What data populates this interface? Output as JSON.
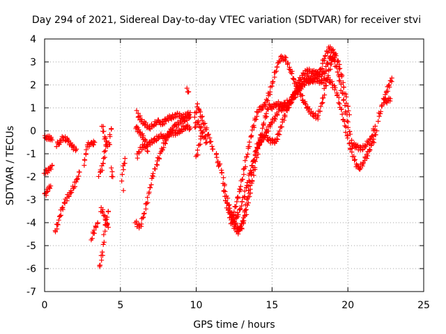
{
  "chart_data": {
    "type": "scatter",
    "title": "Day 294 of 2021, Sidereal Day-to-day VTEC variation (SDTVAR) for receiver stvi",
    "xlabel": "GPS time / hours",
    "ylabel": "SDTVAR / TECUs",
    "xlim": [
      0,
      25
    ],
    "ylim": [
      -7,
      4
    ],
    "xticks": [
      0,
      5,
      10,
      15,
      20,
      25
    ],
    "yticks": [
      -7,
      -6,
      -5,
      -4,
      -3,
      -2,
      -1,
      0,
      1,
      2,
      3,
      4
    ],
    "grid": true,
    "marker": "+",
    "series": [
      {
        "name": "SDTVAR",
        "color": "#ff0000",
        "tracks": [
          [
            [
              0.0,
              -0.3
            ],
            [
              0.3,
              -0.3
            ],
            [
              0.5,
              -0.4
            ]
          ],
          [
            [
              0.0,
              -1.8
            ],
            [
              0.3,
              -1.7
            ],
            [
              0.5,
              -1.5
            ]
          ],
          [
            [
              0.0,
              -2.8
            ],
            [
              0.2,
              -2.6
            ],
            [
              0.4,
              -2.4
            ]
          ],
          [
            [
              0.8,
              -0.6
            ],
            [
              1.0,
              -0.5
            ],
            [
              1.2,
              -0.3
            ],
            [
              1.5,
              -0.4
            ],
            [
              1.8,
              -0.7
            ],
            [
              2.1,
              -0.8
            ]
          ],
          [
            [
              0.7,
              -4.4
            ],
            [
              0.9,
              -4.0
            ],
            [
              1.1,
              -3.5
            ],
            [
              1.4,
              -3.0
            ],
            [
              1.8,
              -2.6
            ],
            [
              2.1,
              -2.2
            ],
            [
              2.3,
              -1.8
            ]
          ],
          [
            [
              2.6,
              -1.5
            ],
            [
              2.7,
              -1.1
            ],
            [
              2.8,
              -0.6
            ],
            [
              3.1,
              -0.6
            ],
            [
              3.3,
              -0.5
            ]
          ],
          [
            [
              3.1,
              -4.7
            ],
            [
              3.3,
              -4.3
            ],
            [
              3.5,
              -4.0
            ]
          ],
          [
            [
              3.6,
              -6.0
            ],
            [
              3.8,
              -5.4
            ],
            [
              3.9,
              -4.8
            ],
            [
              4.0,
              -4.2
            ],
            [
              4.1,
              -3.8
            ],
            [
              4.2,
              -3.5
            ]
          ],
          [
            [
              3.6,
              -1.9
            ],
            [
              3.8,
              -1.6
            ],
            [
              3.9,
              -1.2
            ],
            [
              4.0,
              -0.8
            ],
            [
              4.1,
              -0.6
            ],
            [
              4.3,
              -0.6
            ]
          ],
          [
            [
              3.7,
              -3.4
            ],
            [
              3.9,
              -3.6
            ],
            [
              4.0,
              -3.9
            ],
            [
              4.2,
              -4.2
            ]
          ],
          [
            [
              3.8,
              0.2
            ],
            [
              3.9,
              -0.1
            ],
            [
              4.1,
              -0.6
            ]
          ],
          [
            [
              4.3,
              -0.2
            ],
            [
              4.4,
              0.1
            ]
          ],
          [
            [
              4.4,
              -1.7
            ],
            [
              4.5,
              -2.0
            ]
          ],
          [
            [
              5.1,
              -2.1
            ],
            [
              5.2,
              -1.6
            ],
            [
              5.3,
              -1.2
            ]
          ],
          [
            [
              5.2,
              -2.6
            ]
          ],
          [
            [
              6.0,
              -4.0
            ],
            [
              6.3,
              -4.2
            ],
            [
              6.6,
              -3.5
            ],
            [
              6.9,
              -2.7
            ],
            [
              7.1,
              -2.0
            ],
            [
              7.4,
              -1.4
            ],
            [
              7.7,
              -0.9
            ],
            [
              8.0,
              -0.4
            ],
            [
              8.3,
              0.0
            ],
            [
              8.6,
              0.2
            ],
            [
              9.0,
              0.4
            ],
            [
              9.3,
              0.5
            ],
            [
              9.6,
              0.6
            ]
          ],
          [
            [
              6.0,
              0.2
            ],
            [
              6.2,
              0.0
            ],
            [
              6.5,
              -0.3
            ],
            [
              6.8,
              -0.6
            ],
            [
              7.0,
              -0.5
            ],
            [
              7.3,
              -0.4
            ],
            [
              7.6,
              -0.2
            ],
            [
              7.9,
              -0.3
            ],
            [
              8.3,
              -0.1
            ],
            [
              8.6,
              -0.1
            ],
            [
              9.0,
              0.0
            ],
            [
              9.3,
              0.2
            ],
            [
              9.6,
              0.1
            ]
          ],
          [
            [
              6.1,
              0.8
            ],
            [
              6.3,
              0.5
            ],
            [
              6.6,
              0.3
            ],
            [
              6.9,
              0.1
            ],
            [
              7.2,
              0.3
            ],
            [
              7.5,
              0.4
            ],
            [
              7.8,
              0.3
            ],
            [
              8.0,
              0.5
            ],
            [
              8.4,
              0.6
            ],
            [
              8.8,
              0.7
            ],
            [
              9.2,
              0.6
            ],
            [
              9.6,
              0.8
            ]
          ],
          [
            [
              6.1,
              -1.1
            ],
            [
              6.3,
              -0.8
            ],
            [
              6.6,
              -0.6
            ],
            [
              6.8,
              -0.9
            ]
          ],
          [
            [
              9.4,
              1.8
            ],
            [
              9.5,
              1.7
            ]
          ],
          [
            [
              9.9,
              0.6
            ],
            [
              10.1,
              1.1
            ],
            [
              10.3,
              0.7
            ],
            [
              10.5,
              0.3
            ],
            [
              10.7,
              0.0
            ],
            [
              10.9,
              -0.4
            ],
            [
              11.1,
              -0.8
            ]
          ],
          [
            [
              9.9,
              0.2
            ],
            [
              10.1,
              0.4
            ],
            [
              10.3,
              0.1
            ],
            [
              10.5,
              -0.2
            ],
            [
              10.7,
              -0.5
            ]
          ],
          [
            [
              10.0,
              -1.2
            ],
            [
              10.2,
              -0.6
            ],
            [
              10.4,
              -0.1
            ]
          ],
          [
            [
              11.3,
              -0.9
            ],
            [
              11.4,
              -1.4
            ],
            [
              11.5,
              -1.5
            ]
          ],
          [
            [
              11.6,
              -1.5
            ],
            [
              11.8,
              -2.2
            ],
            [
              12.0,
              -2.9
            ],
            [
              12.2,
              -3.4
            ],
            [
              12.4,
              -3.8
            ],
            [
              12.6,
              -4.1
            ],
            [
              12.8,
              -4.3
            ],
            [
              13.0,
              -4.2
            ],
            [
              13.2,
              -3.8
            ],
            [
              13.4,
              -3.2
            ],
            [
              13.6,
              -2.5
            ],
            [
              13.8,
              -1.8
            ],
            [
              14.0,
              -1.1
            ],
            [
              14.2,
              -0.4
            ],
            [
              14.4,
              0.2
            ],
            [
              14.6,
              0.7
            ],
            [
              14.8,
              1.1
            ],
            [
              15.0,
              1.0
            ],
            [
              15.3,
              1.2
            ],
            [
              15.6,
              1.1
            ],
            [
              15.9,
              1.2
            ],
            [
              16.2,
              1.3
            ],
            [
              16.5,
              1.6
            ],
            [
              16.8,
              2.0
            ],
            [
              17.1,
              2.2
            ],
            [
              17.4,
              2.3
            ],
            [
              17.7,
              2.2
            ],
            [
              18.0,
              2.2
            ],
            [
              18.3,
              2.1
            ],
            [
              18.6,
              2.3
            ],
            [
              18.9,
              2.1
            ],
            [
              19.2,
              1.8
            ],
            [
              19.5,
              1.1
            ],
            [
              19.8,
              0.2
            ],
            [
              20.1,
              -0.6
            ],
            [
              20.4,
              -1.2
            ],
            [
              20.7,
              -1.7
            ],
            [
              21.0,
              -1.4
            ],
            [
              21.3,
              -1.0
            ],
            [
              21.6,
              -0.6
            ],
            [
              21.9,
              0.0
            ]
          ],
          [
            [
              11.8,
              -2.6
            ],
            [
              12.0,
              -3.2
            ],
            [
              12.2,
              -3.7
            ],
            [
              12.4,
              -4.0
            ],
            [
              12.6,
              -4.3
            ],
            [
              12.8,
              -4.4
            ],
            [
              13.0,
              -4.1
            ],
            [
              13.2,
              -3.5
            ],
            [
              13.4,
              -2.8
            ],
            [
              13.6,
              -2.0
            ],
            [
              13.8,
              -1.3
            ],
            [
              14.0,
              -0.7
            ],
            [
              14.2,
              -0.4
            ],
            [
              14.5,
              -0.2
            ],
            [
              14.8,
              -0.4
            ],
            [
              15.1,
              -0.5
            ],
            [
              15.3,
              -0.4
            ],
            [
              15.5,
              0.0
            ],
            [
              15.8,
              0.6
            ],
            [
              16.1,
              1.1
            ],
            [
              16.4,
              1.4
            ],
            [
              16.7,
              1.7
            ],
            [
              17.0,
              2.0
            ],
            [
              17.3,
              2.1
            ],
            [
              17.6,
              2.2
            ],
            [
              17.9,
              2.4
            ],
            [
              18.2,
              2.4
            ],
            [
              18.5,
              2.6
            ],
            [
              18.8,
              3.2
            ],
            [
              19.1,
              3.1
            ],
            [
              19.4,
              2.4
            ],
            [
              19.7,
              1.4
            ],
            [
              20.0,
              0.3
            ],
            [
              20.3,
              -0.6
            ],
            [
              20.6,
              -0.7
            ],
            [
              20.9,
              -0.8
            ],
            [
              21.2,
              -0.6
            ],
            [
              21.5,
              -0.4
            ],
            [
              21.8,
              0.2
            ]
          ],
          [
            [
              12.3,
              -4.0
            ],
            [
              12.5,
              -3.5
            ],
            [
              12.7,
              -3.0
            ],
            [
              12.9,
              -2.5
            ],
            [
              13.1,
              -1.9
            ],
            [
              13.3,
              -1.2
            ],
            [
              13.5,
              -0.6
            ],
            [
              13.7,
              0.0
            ],
            [
              13.9,
              0.5
            ],
            [
              14.1,
              0.9
            ],
            [
              14.3,
              1.0
            ],
            [
              14.5,
              1.1
            ],
            [
              14.7,
              1.4
            ],
            [
              15.0,
              2.0
            ],
            [
              15.3,
              2.8
            ],
            [
              15.6,
              3.2
            ],
            [
              15.9,
              3.1
            ],
            [
              16.2,
              2.7
            ],
            [
              16.5,
              2.1
            ],
            [
              16.8,
              1.7
            ],
            [
              17.1,
              1.3
            ],
            [
              17.4,
              0.9
            ],
            [
              17.7,
              0.7
            ],
            [
              18.0,
              0.6
            ],
            [
              18.3,
              1.2
            ],
            [
              18.6,
              2.2
            ],
            [
              18.9,
              3.0
            ],
            [
              19.2,
              3.3
            ],
            [
              19.5,
              2.7
            ],
            [
              19.8,
              1.7
            ],
            [
              20.1,
              0.7
            ]
          ],
          [
            [
              12.2,
              -3.6
            ],
            [
              12.5,
              -3.9
            ],
            [
              12.8,
              -3.6
            ],
            [
              13.1,
              -3.0
            ],
            [
              13.4,
              -2.2
            ],
            [
              13.7,
              -1.5
            ],
            [
              14.0,
              -0.8
            ],
            [
              14.3,
              -0.4
            ],
            [
              14.6,
              -0.1
            ],
            [
              14.9,
              0.3
            ],
            [
              15.2,
              0.6
            ],
            [
              15.5,
              0.9
            ],
            [
              15.8,
              1.0
            ],
            [
              16.1,
              1.1
            ],
            [
              16.4,
              1.5
            ],
            [
              16.7,
              2.1
            ],
            [
              17.0,
              2.4
            ],
            [
              17.3,
              2.6
            ],
            [
              17.6,
              2.6
            ],
            [
              17.9,
              2.5
            ],
            [
              18.2,
              2.6
            ],
            [
              18.5,
              3.3
            ],
            [
              18.8,
              3.6
            ],
            [
              19.1,
              3.4
            ]
          ],
          [
            [
              22.0,
              0.5
            ],
            [
              22.2,
              1.0
            ],
            [
              22.4,
              1.4
            ],
            [
              22.6,
              1.8
            ],
            [
              22.8,
              2.1
            ],
            [
              22.9,
              2.3
            ]
          ],
          [
            [
              22.4,
              1.3
            ],
            [
              22.6,
              1.3
            ],
            [
              22.8,
              1.4
            ]
          ]
        ]
      }
    ]
  }
}
